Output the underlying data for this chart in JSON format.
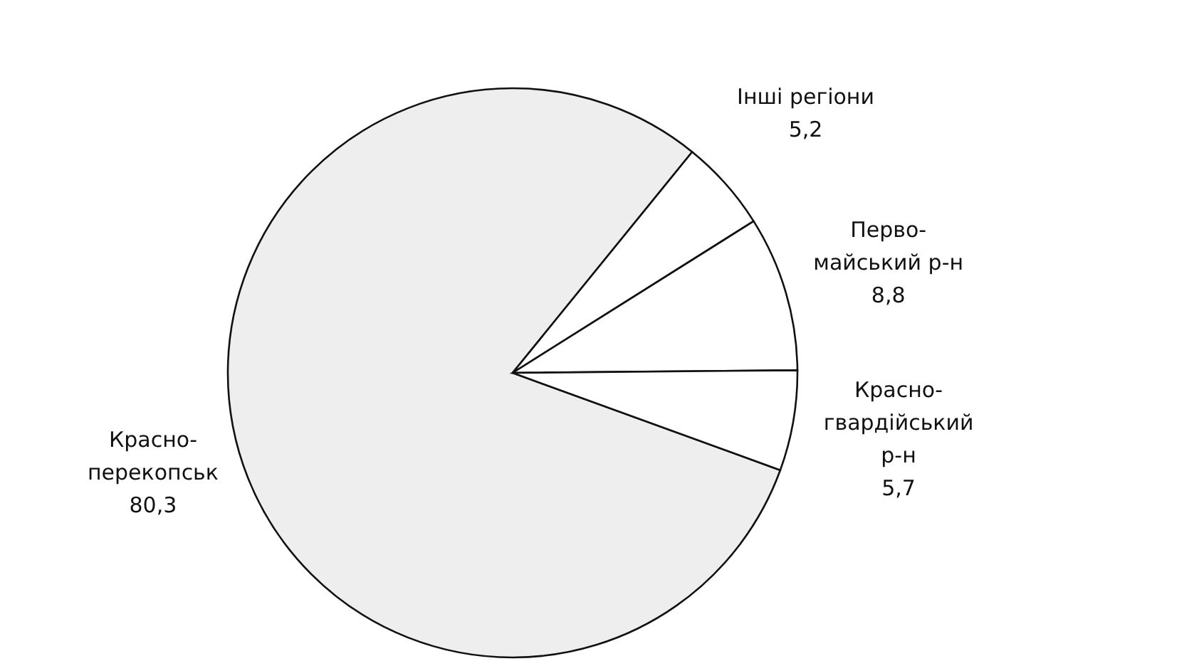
{
  "chart_data": {
    "type": "pie",
    "categories": [
      "Красно-\nперекопськ",
      "Інші регіони",
      "Перво-\nмайський р-н",
      "Красно-\nгвардійський\nр-н"
    ],
    "values": [
      80.3,
      5.2,
      8.8,
      5.7
    ],
    "value_labels": [
      "80,3",
      "5,2",
      "8,8",
      "5,7"
    ],
    "colors": [
      "#eeeeee",
      "#ffffff",
      "#ffffff",
      "#ffffff"
    ]
  }
}
